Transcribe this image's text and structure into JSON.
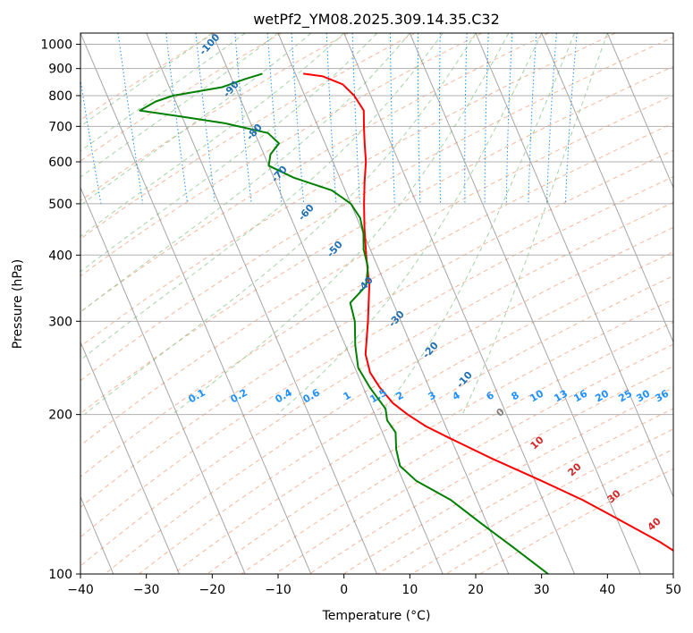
{
  "chart_data": {
    "type": "line",
    "title": "wetPf2_YM08.2025.309.14.35.C32",
    "xlabel": "Temperature (°C)",
    "ylabel": "Pressure (hPa)",
    "x_scale": "linear",
    "y_scale": "log",
    "xlim": [
      -40,
      50
    ],
    "ylim": [
      1050,
      100
    ],
    "x_ticks": [
      "−40",
      "−30",
      "−20",
      "−10",
      "0",
      "10",
      "20",
      "30",
      "40",
      "50"
    ],
    "y_ticks": [
      "100",
      "200",
      "300",
      "400",
      "500",
      "600",
      "700",
      "800",
      "900",
      "1000"
    ],
    "grid": true,
    "series": [
      {
        "color": "#ff0000",
        "points": [
          [
            -8.8,
            880
          ],
          [
            -6,
            870
          ],
          [
            -3.5,
            840
          ],
          [
            -2.5,
            800
          ],
          [
            -2,
            750
          ],
          [
            -3,
            700
          ],
          [
            -4,
            650
          ],
          [
            -5,
            600
          ],
          [
            -6.5,
            550
          ],
          [
            -8,
            500
          ],
          [
            -9.5,
            450
          ],
          [
            -11,
            400
          ],
          [
            -12.5,
            350
          ],
          [
            -15,
            300
          ],
          [
            -17.5,
            260
          ],
          [
            -18,
            240
          ],
          [
            -17.5,
            225
          ],
          [
            -16.5,
            210
          ],
          [
            -15,
            200
          ],
          [
            -13,
            190
          ],
          [
            -10,
            180
          ],
          [
            -5,
            165
          ],
          [
            1,
            150
          ],
          [
            6,
            138
          ],
          [
            9,
            130
          ],
          [
            15,
            115
          ],
          [
            20.5,
            100
          ]
        ]
      },
      {
        "color": "#008000",
        "points": [
          [
            -15,
            880
          ],
          [
            -18,
            860
          ],
          [
            -22,
            830
          ],
          [
            -30,
            800
          ],
          [
            -33,
            780
          ],
          [
            -36,
            750
          ],
          [
            -30,
            730
          ],
          [
            -24,
            710
          ],
          [
            -18,
            680
          ],
          [
            -17,
            650
          ],
          [
            -19,
            620
          ],
          [
            -20,
            590
          ],
          [
            -17,
            560
          ],
          [
            -12,
            530
          ],
          [
            -10,
            500
          ],
          [
            -9.5,
            470
          ],
          [
            -10,
            440
          ],
          [
            -11,
            410
          ],
          [
            -11.5,
            380
          ],
          [
            -13,
            350
          ],
          [
            -16.5,
            325
          ],
          [
            -17,
            300
          ],
          [
            -18.5,
            270
          ],
          [
            -19.5,
            245
          ],
          [
            -19,
            225
          ],
          [
            -18,
            205
          ],
          [
            -18.5,
            195
          ],
          [
            -18,
            185
          ],
          [
            -19,
            172
          ],
          [
            -19.5,
            160
          ],
          [
            -18,
            150
          ],
          [
            -14,
            138
          ],
          [
            -11,
            125
          ],
          [
            -7.5,
            112
          ],
          [
            -4,
            100
          ]
        ]
      }
    ],
    "isotherm_labels": [
      "-100",
      "-90",
      "-80",
      "-70",
      "-60",
      "-50",
      "-40",
      "-30",
      "-20",
      "-10"
    ],
    "isotherm_label_values": [
      -100,
      -90,
      -80,
      -70,
      -60,
      -50,
      -40,
      -30,
      -20,
      -10
    ],
    "mixing_ratio_labels": [
      "0.1",
      "0.2",
      "0.4",
      "0.6",
      "1",
      "1.5",
      "2",
      "3",
      "4",
      "6",
      "8",
      "10",
      "13",
      "16",
      "20",
      "25",
      "30",
      "36"
    ],
    "mixing_ratio_values": [
      0.1,
      0.2,
      0.4,
      0.6,
      1,
      1.5,
      2,
      3,
      4,
      6,
      8,
      10,
      13,
      16,
      20,
      25,
      30,
      36
    ],
    "positive_isotherm_labels": [
      "0",
      "10",
      "20",
      "30",
      "40"
    ],
    "positive_isotherm_values": [
      0,
      10,
      20,
      30,
      40
    ],
    "colors": {
      "temperature": "#ff0000",
      "dewpoint": "#008000",
      "isotherm_label": "#1f6fb2",
      "mixing_ratio": "#1e90ff",
      "dry_adiabat": "#f4a582",
      "moist_adiabat": "#8fc98f",
      "skew_isotherm": "#808080",
      "positive_label": "#d62728",
      "zero_label": "#7f7f7f"
    }
  }
}
